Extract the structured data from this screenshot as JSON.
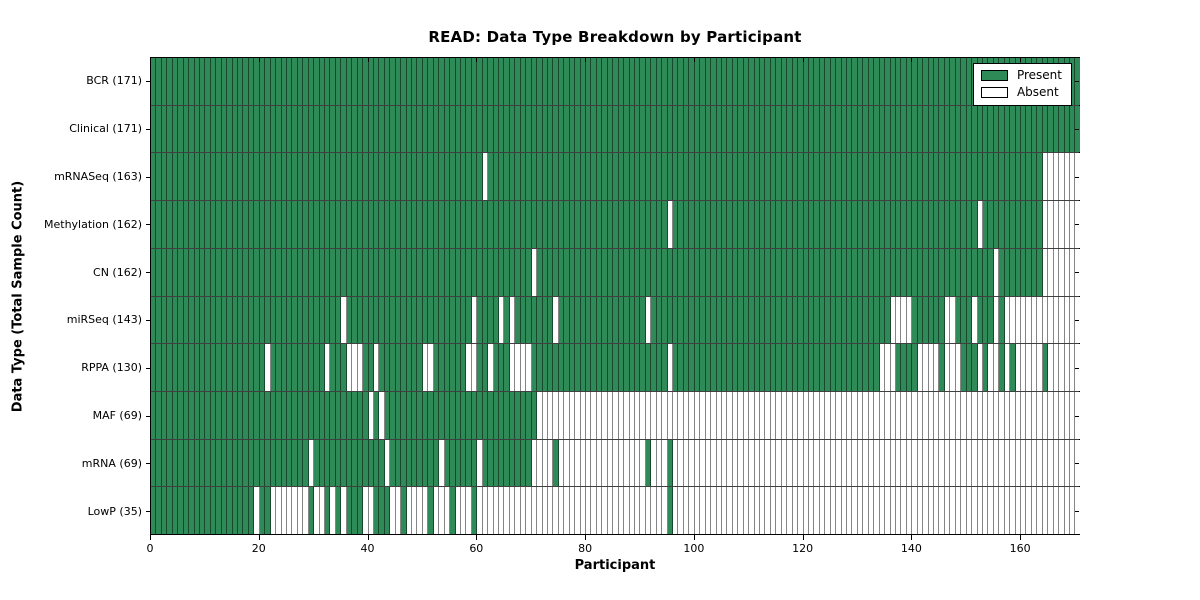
{
  "title": "READ: Data Type Breakdown by Participant",
  "xlabel": "Participant",
  "ylabel": "Data Type (Total Sample Count)",
  "legend": {
    "present_label": "Present",
    "absent_label": "Absent"
  },
  "colors": {
    "present": "#2e8b57",
    "absent": "#ffffff",
    "edge": "#000000"
  },
  "chart_data": {
    "type": "heatmap",
    "x_axis": {
      "label": "Participant",
      "ticks": [
        0,
        20,
        40,
        60,
        80,
        100,
        120,
        140,
        160
      ],
      "range": [
        0,
        171
      ]
    },
    "y_axis": {
      "label": "Data Type (Total Sample Count)"
    },
    "legend_entries": [
      "Present",
      "Absent"
    ],
    "n_participants": 171,
    "rows": [
      {
        "name": "BCR",
        "label": "BCR (171)",
        "count": 171,
        "absent_ranges": []
      },
      {
        "name": "Clinical",
        "label": "Clinical (171)",
        "count": 171,
        "absent_ranges": []
      },
      {
        "name": "mRNASeq",
        "label": "mRNASeq (163)",
        "count": 163,
        "absent_ranges": [
          [
            61,
            61
          ],
          [
            164,
            170
          ]
        ]
      },
      {
        "name": "Methylation",
        "label": "Methylation (162)",
        "count": 162,
        "absent_ranges": [
          [
            95,
            95
          ],
          [
            152,
            152
          ],
          [
            164,
            170
          ]
        ]
      },
      {
        "name": "CN",
        "label": "CN (162)",
        "count": 162,
        "absent_ranges": [
          [
            70,
            70
          ],
          [
            155,
            155
          ],
          [
            164,
            170
          ]
        ]
      },
      {
        "name": "miRSeq",
        "label": "miRSeq (143)",
        "count": 143,
        "absent_ranges": [
          [
            35,
            35
          ],
          [
            59,
            59
          ],
          [
            64,
            64
          ],
          [
            66,
            66
          ],
          [
            74,
            74
          ],
          [
            91,
            91
          ],
          [
            136,
            139
          ],
          [
            146,
            147
          ],
          [
            151,
            151
          ],
          [
            155,
            155
          ],
          [
            157,
            170
          ]
        ]
      },
      {
        "name": "RPPA",
        "label": "RPPA (130)",
        "count": 130,
        "absent_ranges": [
          [
            21,
            21
          ],
          [
            32,
            32
          ],
          [
            36,
            38
          ],
          [
            41,
            41
          ],
          [
            50,
            51
          ],
          [
            58,
            59
          ],
          [
            62,
            62
          ],
          [
            66,
            69
          ],
          [
            95,
            95
          ],
          [
            134,
            136
          ],
          [
            141,
            144
          ],
          [
            146,
            148
          ],
          [
            152,
            152
          ],
          [
            154,
            155
          ],
          [
            157,
            157
          ],
          [
            159,
            163
          ],
          [
            165,
            170
          ]
        ]
      },
      {
        "name": "MAF",
        "label": "MAF (69)",
        "count": 69,
        "absent_ranges": [
          [
            40,
            40
          ],
          [
            42,
            42
          ],
          [
            71,
            170
          ]
        ]
      },
      {
        "name": "mRNA",
        "label": "mRNA (69)",
        "count": 69,
        "absent_ranges": [
          [
            29,
            29
          ],
          [
            43,
            43
          ],
          [
            53,
            53
          ],
          [
            60,
            60
          ],
          [
            70,
            73
          ],
          [
            75,
            90
          ],
          [
            92,
            94
          ],
          [
            96,
            170
          ]
        ]
      },
      {
        "name": "LowP",
        "label": "LowP (35)",
        "count": 35,
        "absent_ranges": [
          [
            19,
            19
          ],
          [
            22,
            28
          ],
          [
            30,
            31
          ],
          [
            33,
            33
          ],
          [
            35,
            35
          ],
          [
            39,
            40
          ],
          [
            44,
            45
          ],
          [
            47,
            50
          ],
          [
            52,
            54
          ],
          [
            56,
            58
          ],
          [
            60,
            94
          ],
          [
            96,
            170
          ]
        ]
      }
    ]
  }
}
